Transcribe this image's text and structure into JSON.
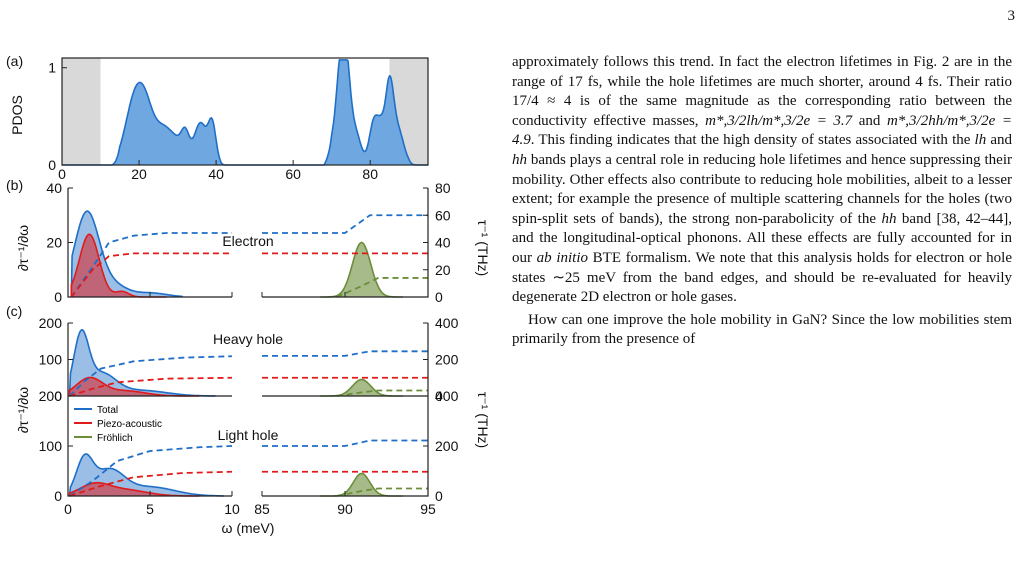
{
  "page_number": "3",
  "figure": {
    "panel_a": {
      "tag": "(a)",
      "ylabel": "PDOS",
      "yticks": [
        "0",
        "1"
      ],
      "xticks": [
        "0",
        "20",
        "40",
        "60",
        "80"
      ],
      "xlim": [
        0,
        95
      ],
      "ylim": [
        0,
        1.1
      ],
      "shaded_regions": [
        [
          0,
          10
        ],
        [
          85,
          95
        ]
      ],
      "colors": {
        "fill": "#6fa8e0",
        "line": "#1f6fc8",
        "shade": "#d9d9d9"
      }
    },
    "panel_b": {
      "tag": "(b)",
      "title": "Electron",
      "yticks_left": [
        "0",
        "20",
        "40"
      ],
      "yticks_right": [
        "0",
        "20",
        "40",
        "60",
        "80"
      ]
    },
    "panel_c": {
      "tag": "(c)",
      "title_top": "Heavy hole",
      "title_bottom": "Light hole",
      "yticks_left_top": [
        "0",
        "100",
        "200"
      ],
      "yticks_right_top": [
        "0",
        "200",
        "400"
      ],
      "yticks_left_bottom": [
        "0",
        "100",
        "200"
      ],
      "yticks_right_bottom": [
        "0",
        "200",
        "400"
      ]
    },
    "left_ylabel": "∂τ⁻¹/∂ω",
    "right_ylabel": "τ⁻¹ (THz)",
    "xlabel": "ω (meV)",
    "xticks_low": [
      "0",
      "5",
      "10"
    ],
    "xticks_high": [
      "85",
      "90",
      "95"
    ],
    "legend": [
      "Total",
      "Piezo-acoustic",
      "Fröhlich"
    ],
    "series_colors": {
      "total": "#1f6fc8",
      "piezo": "#e01b1b",
      "frohlich": "#6b8e3a"
    }
  },
  "text": {
    "p1_a": "approximately follows this trend. In fact the electron lifetimes in Fig. 2 are in the range of 17 fs, while the hole lifetimes are much shorter, around 4 fs. Their ratio 17/4 ≈ 4 is of the same magnitude as the corresponding ratio between the conductivity effective masses, ",
    "p1_m1": "m*,3/2lh/m*,3/2e = 3.7",
    "p1_and": " and ",
    "p1_m2": "m*,3/2hh/m*,3/2e = 4.9",
    "p1_b": ". This finding indicates that the high density of states associated with the ",
    "p1_lh": "lh",
    "p1_c": " and ",
    "p1_hh": "hh",
    "p1_d": " bands plays a central role in reducing hole lifetimes and hence suppressing their mobility. Other effects also contribute to reducing hole mobilities, albeit to a lesser extent; for example the presence of multiple scattering channels for the holes (two spin-split sets of bands), the strong non-parabolicity of the ",
    "p1_hh2": "hh",
    "p1_e": " band [38, 42–44], and the longitudinal-optical phonons. All these effects are fully accounted for in our ",
    "p1_abinitio": "ab initio",
    "p1_f": " BTE formalism. We note that this analysis holds for electron or hole states ∼25 meV from the band edges, and should be re-evaluated for heavily degenerate 2D electron or hole gases.",
    "p2": "How can one improve the hole mobility in GaN? Since the low mobilities stem primarily from the presence of"
  }
}
